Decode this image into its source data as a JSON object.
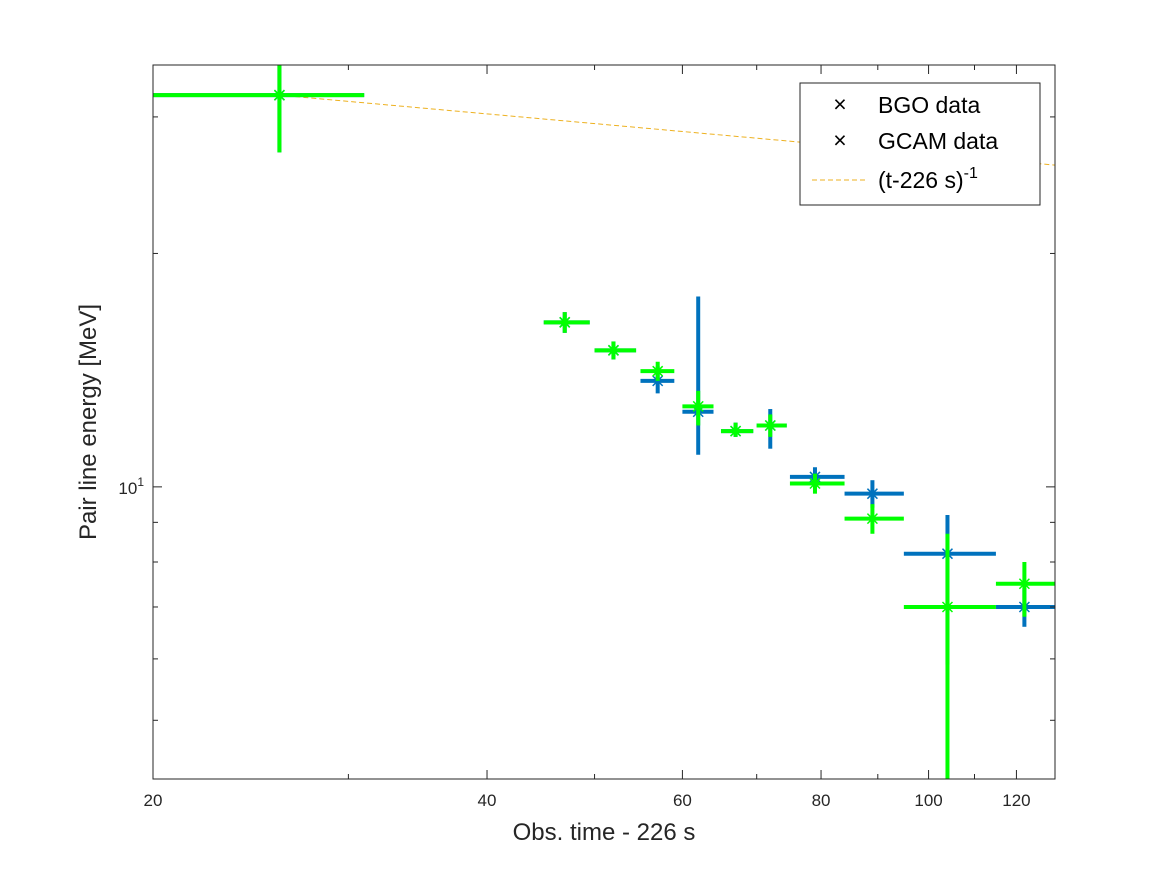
{
  "chart_data": {
    "type": "scatter",
    "title": "",
    "xlabel": "Obs. time - 226 s",
    "ylabel": "Pair line energy [MeV]",
    "x_scale": "log",
    "y_scale": "log",
    "xlim": [
      20,
      130
    ],
    "ylim": [
      4.2,
      35
    ],
    "x_ticks": [
      {
        "value": 20,
        "label": "20"
      },
      {
        "value": 40,
        "label": "40"
      },
      {
        "value": 60,
        "label": "60"
      },
      {
        "value": 80,
        "label": "80"
      },
      {
        "value": 100,
        "label": "100"
      },
      {
        "value": 120,
        "label": "120"
      }
    ],
    "y_ticks": [
      {
        "value": 10,
        "base": "10",
        "exponent": "1"
      }
    ],
    "grid": false,
    "legend_position": "top-right",
    "legend": [
      {
        "label": "BGO data",
        "marker": "x",
        "color": "#0072BD"
      },
      {
        "label": "GCAM data",
        "marker": "x",
        "color": "#00FF00"
      },
      {
        "label_main": "(t-226 s)",
        "label_sup": "-1",
        "style": "dashed",
        "color": "#EDB120"
      }
    ],
    "series": [
      {
        "name": "BGO data",
        "color": "#0072BD",
        "points": [
          {
            "x": 26.0,
            "xlo": 20.0,
            "xhi": 31.0,
            "y": 32.0,
            "ylo": 27.0,
            "yhi": 38.0
          },
          {
            "x": 47.0,
            "xlo": 45.0,
            "xhi": 49.5,
            "y": 16.3,
            "ylo": 15.8,
            "yhi": 16.8
          },
          {
            "x": 52.0,
            "xlo": 50.0,
            "xhi": 54.5,
            "y": 15.0,
            "ylo": 14.6,
            "yhi": 15.4
          },
          {
            "x": 57.0,
            "xlo": 55.0,
            "xhi": 59.0,
            "y": 13.7,
            "ylo": 13.2,
            "yhi": 14.3
          },
          {
            "x": 62.0,
            "xlo": 60.0,
            "xhi": 64.0,
            "y": 12.5,
            "ylo": 11.0,
            "yhi": 17.6
          },
          {
            "x": 67.0,
            "xlo": 65.0,
            "xhi": 69.5,
            "y": 11.8,
            "ylo": 11.6,
            "yhi": 12.1
          },
          {
            "x": 72.0,
            "xlo": 70.0,
            "xhi": 74.5,
            "y": 12.0,
            "ylo": 11.2,
            "yhi": 12.6
          },
          {
            "x": 79.0,
            "xlo": 75.0,
            "xhi": 84.0,
            "y": 10.3,
            "ylo": 10.0,
            "yhi": 10.6
          },
          {
            "x": 89.0,
            "xlo": 84.0,
            "xhi": 95.0,
            "y": 9.8,
            "ylo": 9.4,
            "yhi": 10.2
          },
          {
            "x": 104.0,
            "xlo": 95.0,
            "xhi": 115.0,
            "y": 8.2,
            "ylo": 5.9,
            "yhi": 9.2
          },
          {
            "x": 122.0,
            "xlo": 115.0,
            "xhi": 130.0,
            "y": 7.0,
            "ylo": 6.6,
            "yhi": 7.4
          }
        ]
      },
      {
        "name": "GCAM data",
        "color": "#00FF00",
        "points": [
          {
            "x": 26.0,
            "xlo": 20.0,
            "xhi": 31.0,
            "y": 32.0,
            "ylo": 27.0,
            "yhi": 38.0
          },
          {
            "x": 47.0,
            "xlo": 45.0,
            "xhi": 49.5,
            "y": 16.3,
            "ylo": 15.8,
            "yhi": 16.8
          },
          {
            "x": 52.0,
            "xlo": 50.0,
            "xhi": 54.5,
            "y": 15.0,
            "ylo": 14.6,
            "yhi": 15.4
          },
          {
            "x": 57.0,
            "xlo": 55.0,
            "xhi": 59.0,
            "y": 14.1,
            "ylo": 13.7,
            "yhi": 14.5
          },
          {
            "x": 62.0,
            "xlo": 60.0,
            "xhi": 64.0,
            "y": 12.7,
            "ylo": 12.0,
            "yhi": 13.3
          },
          {
            "x": 67.0,
            "xlo": 65.0,
            "xhi": 69.5,
            "y": 11.8,
            "ylo": 11.6,
            "yhi": 12.1
          },
          {
            "x": 72.0,
            "xlo": 70.0,
            "xhi": 74.5,
            "y": 12.0,
            "ylo": 11.6,
            "yhi": 12.4
          },
          {
            "x": 79.0,
            "xlo": 75.0,
            "xhi": 84.0,
            "y": 10.1,
            "ylo": 9.8,
            "yhi": 10.4
          },
          {
            "x": 89.0,
            "xlo": 84.0,
            "xhi": 95.0,
            "y": 9.1,
            "ylo": 8.7,
            "yhi": 9.5
          },
          {
            "x": 104.0,
            "xlo": 95.0,
            "xhi": 115.0,
            "y": 7.0,
            "ylo": 4.2,
            "yhi": 8.7
          },
          {
            "x": 122.0,
            "xlo": 115.0,
            "xhi": 130.0,
            "y": 7.5,
            "ylo": 6.8,
            "yhi": 8.0
          }
        ]
      }
    ],
    "fit_line": {
      "name": "(t-226 s)^-1",
      "color": "#EDB120",
      "style": "dashed",
      "x_range": [
        26.0,
        130.0
      ],
      "y_at_x": [
        32.0,
        26.0
      ]
    }
  }
}
